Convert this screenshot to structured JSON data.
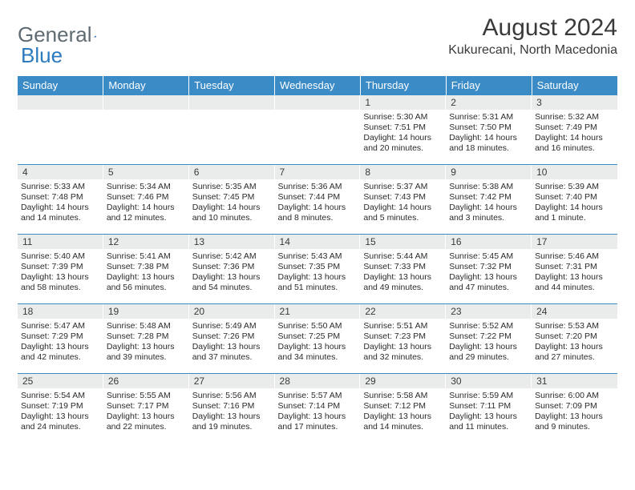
{
  "logo": {
    "part1": "General",
    "part2": "Blue"
  },
  "title": {
    "month": "August 2024",
    "location": "Kukurecani, North Macedonia"
  },
  "colors": {
    "header_bg": "#3b8bc7",
    "header_text": "#ffffff",
    "daynum_bg": "#e9eceb",
    "row_border": "#3b8bc7",
    "text": "#2a2a2a",
    "logo_gray": "#5f6b72",
    "logo_blue": "#2d7bbf",
    "page_bg": "#ffffff"
  },
  "typography": {
    "month_fontsize": 30,
    "location_fontsize": 16,
    "weekday_fontsize": 13,
    "daynum_fontsize": 12,
    "info_fontsize": 10.5,
    "font_family": "Arial"
  },
  "weekdays": [
    "Sunday",
    "Monday",
    "Tuesday",
    "Wednesday",
    "Thursday",
    "Friday",
    "Saturday"
  ],
  "weeks": [
    [
      {
        "day": "",
        "sunrise": "",
        "sunset": "",
        "daylight": ""
      },
      {
        "day": "",
        "sunrise": "",
        "sunset": "",
        "daylight": ""
      },
      {
        "day": "",
        "sunrise": "",
        "sunset": "",
        "daylight": ""
      },
      {
        "day": "",
        "sunrise": "",
        "sunset": "",
        "daylight": ""
      },
      {
        "day": "1",
        "sunrise": "Sunrise: 5:30 AM",
        "sunset": "Sunset: 7:51 PM",
        "daylight": "Daylight: 14 hours and 20 minutes."
      },
      {
        "day": "2",
        "sunrise": "Sunrise: 5:31 AM",
        "sunset": "Sunset: 7:50 PM",
        "daylight": "Daylight: 14 hours and 18 minutes."
      },
      {
        "day": "3",
        "sunrise": "Sunrise: 5:32 AM",
        "sunset": "Sunset: 7:49 PM",
        "daylight": "Daylight: 14 hours and 16 minutes."
      }
    ],
    [
      {
        "day": "4",
        "sunrise": "Sunrise: 5:33 AM",
        "sunset": "Sunset: 7:48 PM",
        "daylight": "Daylight: 14 hours and 14 minutes."
      },
      {
        "day": "5",
        "sunrise": "Sunrise: 5:34 AM",
        "sunset": "Sunset: 7:46 PM",
        "daylight": "Daylight: 14 hours and 12 minutes."
      },
      {
        "day": "6",
        "sunrise": "Sunrise: 5:35 AM",
        "sunset": "Sunset: 7:45 PM",
        "daylight": "Daylight: 14 hours and 10 minutes."
      },
      {
        "day": "7",
        "sunrise": "Sunrise: 5:36 AM",
        "sunset": "Sunset: 7:44 PM",
        "daylight": "Daylight: 14 hours and 8 minutes."
      },
      {
        "day": "8",
        "sunrise": "Sunrise: 5:37 AM",
        "sunset": "Sunset: 7:43 PM",
        "daylight": "Daylight: 14 hours and 5 minutes."
      },
      {
        "day": "9",
        "sunrise": "Sunrise: 5:38 AM",
        "sunset": "Sunset: 7:42 PM",
        "daylight": "Daylight: 14 hours and 3 minutes."
      },
      {
        "day": "10",
        "sunrise": "Sunrise: 5:39 AM",
        "sunset": "Sunset: 7:40 PM",
        "daylight": "Daylight: 14 hours and 1 minute."
      }
    ],
    [
      {
        "day": "11",
        "sunrise": "Sunrise: 5:40 AM",
        "sunset": "Sunset: 7:39 PM",
        "daylight": "Daylight: 13 hours and 58 minutes."
      },
      {
        "day": "12",
        "sunrise": "Sunrise: 5:41 AM",
        "sunset": "Sunset: 7:38 PM",
        "daylight": "Daylight: 13 hours and 56 minutes."
      },
      {
        "day": "13",
        "sunrise": "Sunrise: 5:42 AM",
        "sunset": "Sunset: 7:36 PM",
        "daylight": "Daylight: 13 hours and 54 minutes."
      },
      {
        "day": "14",
        "sunrise": "Sunrise: 5:43 AM",
        "sunset": "Sunset: 7:35 PM",
        "daylight": "Daylight: 13 hours and 51 minutes."
      },
      {
        "day": "15",
        "sunrise": "Sunrise: 5:44 AM",
        "sunset": "Sunset: 7:33 PM",
        "daylight": "Daylight: 13 hours and 49 minutes."
      },
      {
        "day": "16",
        "sunrise": "Sunrise: 5:45 AM",
        "sunset": "Sunset: 7:32 PM",
        "daylight": "Daylight: 13 hours and 47 minutes."
      },
      {
        "day": "17",
        "sunrise": "Sunrise: 5:46 AM",
        "sunset": "Sunset: 7:31 PM",
        "daylight": "Daylight: 13 hours and 44 minutes."
      }
    ],
    [
      {
        "day": "18",
        "sunrise": "Sunrise: 5:47 AM",
        "sunset": "Sunset: 7:29 PM",
        "daylight": "Daylight: 13 hours and 42 minutes."
      },
      {
        "day": "19",
        "sunrise": "Sunrise: 5:48 AM",
        "sunset": "Sunset: 7:28 PM",
        "daylight": "Daylight: 13 hours and 39 minutes."
      },
      {
        "day": "20",
        "sunrise": "Sunrise: 5:49 AM",
        "sunset": "Sunset: 7:26 PM",
        "daylight": "Daylight: 13 hours and 37 minutes."
      },
      {
        "day": "21",
        "sunrise": "Sunrise: 5:50 AM",
        "sunset": "Sunset: 7:25 PM",
        "daylight": "Daylight: 13 hours and 34 minutes."
      },
      {
        "day": "22",
        "sunrise": "Sunrise: 5:51 AM",
        "sunset": "Sunset: 7:23 PM",
        "daylight": "Daylight: 13 hours and 32 minutes."
      },
      {
        "day": "23",
        "sunrise": "Sunrise: 5:52 AM",
        "sunset": "Sunset: 7:22 PM",
        "daylight": "Daylight: 13 hours and 29 minutes."
      },
      {
        "day": "24",
        "sunrise": "Sunrise: 5:53 AM",
        "sunset": "Sunset: 7:20 PM",
        "daylight": "Daylight: 13 hours and 27 minutes."
      }
    ],
    [
      {
        "day": "25",
        "sunrise": "Sunrise: 5:54 AM",
        "sunset": "Sunset: 7:19 PM",
        "daylight": "Daylight: 13 hours and 24 minutes."
      },
      {
        "day": "26",
        "sunrise": "Sunrise: 5:55 AM",
        "sunset": "Sunset: 7:17 PM",
        "daylight": "Daylight: 13 hours and 22 minutes."
      },
      {
        "day": "27",
        "sunrise": "Sunrise: 5:56 AM",
        "sunset": "Sunset: 7:16 PM",
        "daylight": "Daylight: 13 hours and 19 minutes."
      },
      {
        "day": "28",
        "sunrise": "Sunrise: 5:57 AM",
        "sunset": "Sunset: 7:14 PM",
        "daylight": "Daylight: 13 hours and 17 minutes."
      },
      {
        "day": "29",
        "sunrise": "Sunrise: 5:58 AM",
        "sunset": "Sunset: 7:12 PM",
        "daylight": "Daylight: 13 hours and 14 minutes."
      },
      {
        "day": "30",
        "sunrise": "Sunrise: 5:59 AM",
        "sunset": "Sunset: 7:11 PM",
        "daylight": "Daylight: 13 hours and 11 minutes."
      },
      {
        "day": "31",
        "sunrise": "Sunrise: 6:00 AM",
        "sunset": "Sunset: 7:09 PM",
        "daylight": "Daylight: 13 hours and 9 minutes."
      }
    ]
  ]
}
